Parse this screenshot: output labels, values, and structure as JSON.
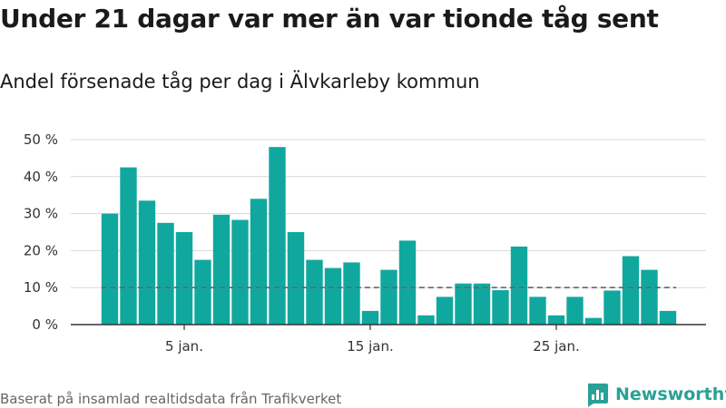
{
  "header": {
    "title": "Under 21 dagar var mer än var tionde tåg sent",
    "subtitle": "Andel försenade tåg per dag i Älvkarleby kommun"
  },
  "footer": {
    "source": "Baserat på insamlad realtidsdata från Trafikverket",
    "brand": "Newsworthy"
  },
  "colors": {
    "bar": "#10a89e",
    "reference_line": "#666666",
    "grid": "#d9d9d9",
    "axis": "#333333",
    "brand": "#2aa196"
  },
  "chart_data": {
    "type": "bar",
    "title": "Under 21 dagar var mer än var tionde tåg sent",
    "subtitle": "Andel försenade tåg per dag i Älvkarleby kommun",
    "x": [
      1,
      2,
      3,
      4,
      5,
      6,
      7,
      8,
      9,
      10,
      11,
      12,
      13,
      14,
      15,
      16,
      17,
      18,
      19,
      20,
      21,
      22,
      23,
      24,
      25,
      26,
      27,
      28,
      29,
      30,
      31
    ],
    "values": [
      30,
      42.5,
      33.5,
      27.5,
      25,
      17.5,
      29.7,
      28.3,
      34,
      48,
      25,
      17.5,
      15.3,
      16.8,
      3.7,
      14.8,
      22.7,
      2.5,
      7.5,
      11.1,
      11.1,
      9.3,
      21.1,
      7.5,
      2.5,
      7.5,
      1.8,
      9.2,
      18.5,
      14.8,
      3.7
    ],
    "ylim": [
      0,
      50
    ],
    "yticks": [
      0,
      10,
      20,
      30,
      40,
      50
    ],
    "ytick_labels": [
      "0 %",
      "10 %",
      "20 %",
      "30 %",
      "40 %",
      "50 %"
    ],
    "xticks": [
      5,
      15,
      25
    ],
    "xtick_labels": [
      "5 jan.",
      "15 jan.",
      "25 jan."
    ],
    "reference_line": 10,
    "xlabel": "",
    "ylabel": "",
    "grid": true
  }
}
